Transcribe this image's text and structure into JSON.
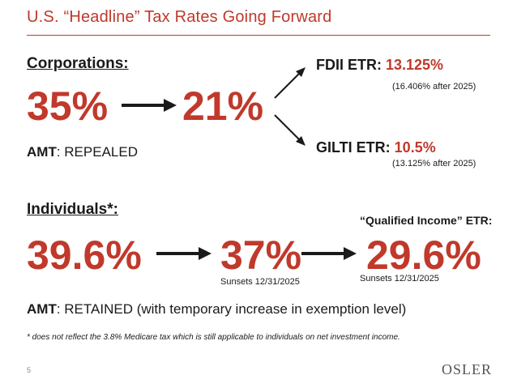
{
  "slide": {
    "title": "U.S. “Headline” Tax Rates Going Forward",
    "page_number": "5",
    "logo": "OSLER"
  },
  "corporations": {
    "heading": "Corporations:",
    "rate_from": "35%",
    "rate_to": "21%",
    "amt_label": "AMT",
    "amt_value": ": REPEALED",
    "fdii_label": "FDII ETR",
    "fdii_colon": ": ",
    "fdii_value": "13.125%",
    "fdii_note": "(16.406% after 2025)",
    "gilti_label": "GILTI ETR",
    "gilti_colon": ": ",
    "gilti_value": "10.5%",
    "gilti_note": "(13.125% after 2025)"
  },
  "individuals": {
    "heading": "Individuals*:",
    "rate_from": "39.6%",
    "rate_to": "37%",
    "rate_to_note": "Sunsets 12/31/2025",
    "qi_label": "“Qualified Income” ETR:",
    "qi_rate": "29.6%",
    "qi_note": "Sunsets 12/31/2025",
    "amt_label": "AMT",
    "amt_value": ": RETAINED (with temporary increase in exemption level)"
  },
  "footnote": "* does not reflect the 3.8% Medicare tax which is still applicable to individuals on net investment income.",
  "colors": {
    "accent": "#c0392b",
    "text": "#1a1a1a"
  },
  "icons": [
    "arrow-right-icon",
    "arrow-diagonal-up-icon",
    "arrow-diagonal-down-icon"
  ]
}
